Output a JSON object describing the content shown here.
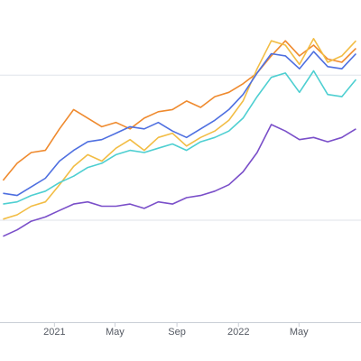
{
  "chart_data": {
    "type": "line",
    "title": "",
    "xlabel": "",
    "ylabel": "",
    "x_ticks": [
      "2021",
      "May",
      "Sep",
      "2022",
      "May"
    ],
    "x_tick_dates": [
      "2021-01-01",
      "2021-05-01",
      "2021-09-01",
      "2022-01-01",
      "2022-05-01"
    ],
    "x_range": [
      "2020-09-15",
      "2022-09-01"
    ],
    "ylim": [
      0,
      300
    ],
    "y_gridlines": [
      95,
      230
    ],
    "grid": "horizontal",
    "legend": "none",
    "series": [
      {
        "color": "#ef8a2e",
        "values": [
          [
            "2020-09-21",
            132
          ],
          [
            "2020-10-19",
            148
          ],
          [
            "2020-11-16",
            158
          ],
          [
            "2020-12-14",
            160
          ],
          [
            "2021-01-11",
            180
          ],
          [
            "2021-02-08",
            198
          ],
          [
            "2021-03-08",
            190
          ],
          [
            "2021-04-05",
            182
          ],
          [
            "2021-05-03",
            186
          ],
          [
            "2021-05-31",
            180
          ],
          [
            "2021-06-28",
            190
          ],
          [
            "2021-07-26",
            196
          ],
          [
            "2021-08-23",
            198
          ],
          [
            "2021-09-20",
            206
          ],
          [
            "2021-10-18",
            200
          ],
          [
            "2021-11-15",
            210
          ],
          [
            "2021-12-13",
            214
          ],
          [
            "2022-01-10",
            222
          ],
          [
            "2022-02-07",
            232
          ],
          [
            "2022-03-07",
            248
          ],
          [
            "2022-04-04",
            262
          ],
          [
            "2022-05-02",
            248
          ],
          [
            "2022-05-30",
            258
          ],
          [
            "2022-06-27",
            245
          ],
          [
            "2022-07-25",
            242
          ],
          [
            "2022-08-22",
            255
          ]
        ]
      },
      {
        "color": "#f2bd45",
        "values": [
          [
            "2020-09-21",
            96
          ],
          [
            "2020-10-19",
            100
          ],
          [
            "2020-11-16",
            108
          ],
          [
            "2020-12-14",
            112
          ],
          [
            "2021-01-11",
            128
          ],
          [
            "2021-02-08",
            145
          ],
          [
            "2021-03-08",
            156
          ],
          [
            "2021-04-05",
            150
          ],
          [
            "2021-05-03",
            162
          ],
          [
            "2021-05-31",
            170
          ],
          [
            "2021-06-28",
            160
          ],
          [
            "2021-07-26",
            172
          ],
          [
            "2021-08-23",
            176
          ],
          [
            "2021-09-20",
            164
          ],
          [
            "2021-10-18",
            172
          ],
          [
            "2021-11-15",
            178
          ],
          [
            "2021-12-13",
            188
          ],
          [
            "2022-01-10",
            206
          ],
          [
            "2022-02-07",
            236
          ],
          [
            "2022-03-07",
            262
          ],
          [
            "2022-04-04",
            258
          ],
          [
            "2022-05-02",
            240
          ],
          [
            "2022-05-30",
            264
          ],
          [
            "2022-06-27",
            242
          ],
          [
            "2022-07-25",
            248
          ],
          [
            "2022-08-22",
            262
          ]
        ]
      },
      {
        "color": "#4e6fe0",
        "values": [
          [
            "2020-09-21",
            120
          ],
          [
            "2020-10-19",
            118
          ],
          [
            "2020-11-16",
            126
          ],
          [
            "2020-12-14",
            134
          ],
          [
            "2021-01-11",
            150
          ],
          [
            "2021-02-08",
            160
          ],
          [
            "2021-03-08",
            168
          ],
          [
            "2021-04-05",
            170
          ],
          [
            "2021-05-03",
            176
          ],
          [
            "2021-05-31",
            182
          ],
          [
            "2021-06-28",
            180
          ],
          [
            "2021-07-26",
            186
          ],
          [
            "2021-08-23",
            178
          ],
          [
            "2021-09-20",
            172
          ],
          [
            "2021-10-18",
            180
          ],
          [
            "2021-11-15",
            188
          ],
          [
            "2021-12-13",
            198
          ],
          [
            "2022-01-10",
            212
          ],
          [
            "2022-02-07",
            232
          ],
          [
            "2022-03-07",
            250
          ],
          [
            "2022-04-04",
            248
          ],
          [
            "2022-05-02",
            236
          ],
          [
            "2022-05-30",
            252
          ],
          [
            "2022-06-27",
            238
          ],
          [
            "2022-07-25",
            236
          ],
          [
            "2022-08-22",
            250
          ]
        ]
      },
      {
        "color": "#4ecfd1",
        "values": [
          [
            "2020-09-21",
            110
          ],
          [
            "2020-10-19",
            112
          ],
          [
            "2020-11-16",
            118
          ],
          [
            "2020-12-14",
            122
          ],
          [
            "2021-01-11",
            130
          ],
          [
            "2021-02-08",
            136
          ],
          [
            "2021-03-08",
            144
          ],
          [
            "2021-04-05",
            148
          ],
          [
            "2021-05-03",
            156
          ],
          [
            "2021-05-31",
            160
          ],
          [
            "2021-06-28",
            158
          ],
          [
            "2021-07-26",
            162
          ],
          [
            "2021-08-23",
            166
          ],
          [
            "2021-09-20",
            160
          ],
          [
            "2021-10-18",
            168
          ],
          [
            "2021-11-15",
            172
          ],
          [
            "2021-12-13",
            178
          ],
          [
            "2022-01-10",
            190
          ],
          [
            "2022-02-07",
            210
          ],
          [
            "2022-03-07",
            228
          ],
          [
            "2022-04-04",
            232
          ],
          [
            "2022-05-02",
            214
          ],
          [
            "2022-05-30",
            234
          ],
          [
            "2022-06-27",
            212
          ],
          [
            "2022-07-25",
            210
          ],
          [
            "2022-08-22",
            226
          ]
        ]
      },
      {
        "color": "#7a4fc9",
        "values": [
          [
            "2020-09-21",
            80
          ],
          [
            "2020-10-19",
            86
          ],
          [
            "2020-11-16",
            94
          ],
          [
            "2020-12-14",
            98
          ],
          [
            "2021-01-11",
            104
          ],
          [
            "2021-02-08",
            110
          ],
          [
            "2021-03-08",
            112
          ],
          [
            "2021-04-05",
            108
          ],
          [
            "2021-05-03",
            108
          ],
          [
            "2021-05-31",
            110
          ],
          [
            "2021-06-28",
            106
          ],
          [
            "2021-07-26",
            112
          ],
          [
            "2021-08-23",
            110
          ],
          [
            "2021-09-20",
            116
          ],
          [
            "2021-10-18",
            118
          ],
          [
            "2021-11-15",
            122
          ],
          [
            "2021-12-13",
            128
          ],
          [
            "2022-01-10",
            140
          ],
          [
            "2022-02-07",
            158
          ],
          [
            "2022-03-07",
            184
          ],
          [
            "2022-04-04",
            178
          ],
          [
            "2022-05-02",
            170
          ],
          [
            "2022-05-30",
            172
          ],
          [
            "2022-06-27",
            168
          ],
          [
            "2022-07-25",
            172
          ],
          [
            "2022-08-22",
            180
          ]
        ]
      }
    ]
  }
}
